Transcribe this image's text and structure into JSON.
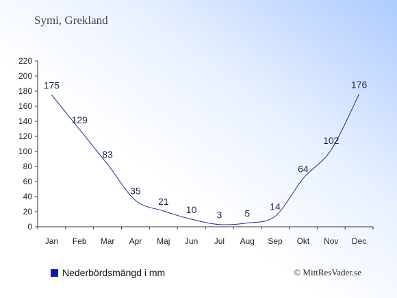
{
  "location_title": "Symi, Grekland",
  "legend_label": "Nederbördsmängd i mm",
  "credit": "© MittResVader.se",
  "chart_data": {
    "type": "line",
    "categories": [
      "Jan",
      "Feb",
      "Mar",
      "Apr",
      "Maj",
      "Jun",
      "Jul",
      "Aug",
      "Sep",
      "Okt",
      "Nov",
      "Dec"
    ],
    "series": [
      {
        "name": "Nederbördsmängd i mm",
        "values": [
          175,
          129,
          83,
          35,
          21,
          10,
          3,
          5,
          14,
          64,
          102,
          176
        ]
      }
    ],
    "ylim": [
      0,
      220
    ],
    "yticks": [
      0,
      20,
      40,
      60,
      80,
      100,
      120,
      140,
      160,
      180,
      200,
      220
    ],
    "line_color": "#1c2a99",
    "label_color": "#1a2a5a",
    "legend_color": "#0a1aa8",
    "grid": false
  }
}
